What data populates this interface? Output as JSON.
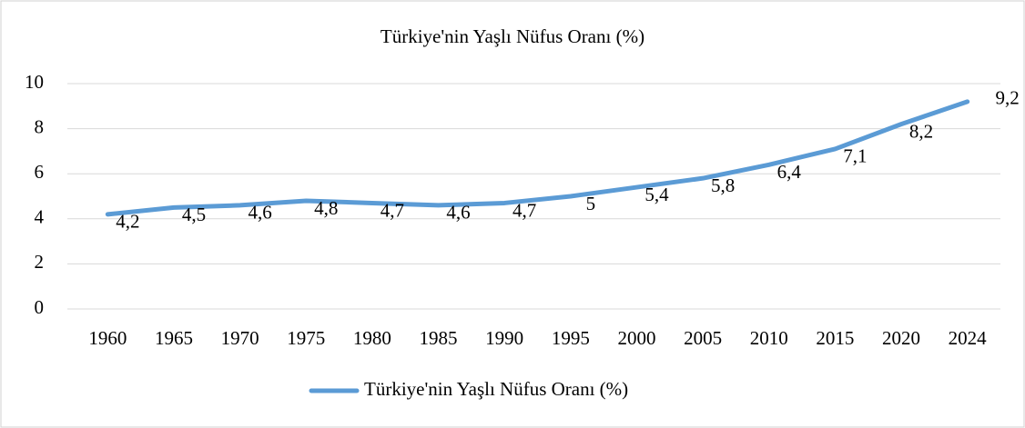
{
  "chart_data": {
    "type": "line",
    "title": "Türkiye'nin Yaşlı Nüfus Oranı (%)",
    "categories": [
      "1960",
      "1965",
      "1970",
      "1975",
      "1980",
      "1985",
      "1990",
      "1995",
      "2000",
      "2005",
      "2010",
      "2015",
      "2020",
      "2024"
    ],
    "series": [
      {
        "name": "Türkiye'nin Yaşlı Nüfus Oranı (%)",
        "color": "#5b9bd5",
        "values": [
          4.2,
          4.5,
          4.6,
          4.8,
          4.7,
          4.6,
          4.7,
          5,
          5.4,
          5.8,
          6.4,
          7.1,
          8.2,
          9.2
        ],
        "value_labels": [
          "4,2",
          "4,5",
          "4,6",
          "4,8",
          "4,7",
          "4,6",
          "4,7",
          "5",
          "5,4",
          "5,8",
          "6,4",
          "7,1",
          "8,2",
          "9,2"
        ]
      }
    ],
    "ylim": [
      0,
      10
    ],
    "yticks": [
      0,
      2,
      4,
      6,
      8,
      10
    ],
    "grid": true,
    "legend": "bottom"
  }
}
